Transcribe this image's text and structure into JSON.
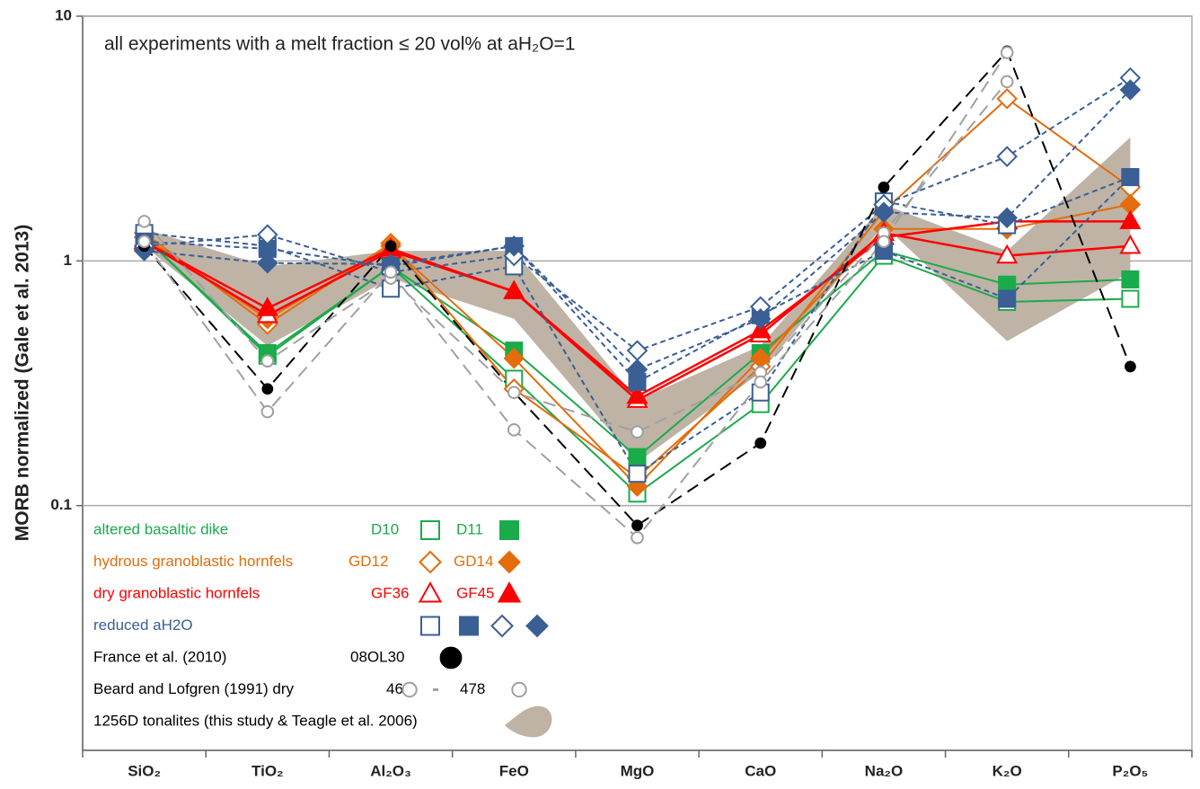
{
  "chart_data": {
    "type": "line",
    "title": "all experiments with a melt fraction ≤ 20 vol% at aH₂O=1",
    "y_label": "MORB normalized (Gale et al. 2013)",
    "categories": [
      "SiO₂",
      "TiO₂",
      "Al₂O₃",
      "FeO",
      "MgO",
      "CaO",
      "Na₂O",
      "K₂O",
      "P₂O₅"
    ],
    "ylim": [
      0.01,
      10
    ],
    "yticks": [
      0.1,
      1,
      10
    ],
    "log_scale": true,
    "grid": true,
    "legend_position": "lower left",
    "groups": [
      {
        "label": "altered basaltic dike",
        "color": "#1aab4b"
      },
      {
        "label": "hydrous granoblastic hornfels",
        "color": "#e46c0a"
      },
      {
        "label": "dry granoblastic hornfels",
        "color": "#ff0000"
      },
      {
        "label": "reduced aH2O",
        "color": "#3a5f94"
      },
      {
        "label": "France et al. (2010)",
        "color": "#000000"
      },
      {
        "label": "Beard and Lofgren (1991) dry",
        "color": "#000000"
      },
      {
        "label": "1256D tonalites (this study & Teagle et al. 2006)",
        "color": "#000000"
      }
    ],
    "series": [
      {
        "name": "D10",
        "group": 0,
        "color": "#1aab4b",
        "marker": "square",
        "filled": false,
        "dashed": false,
        "values": [
          1.25,
          0.41,
          0.95,
          0.33,
          0.112,
          0.26,
          1.05,
          0.68,
          0.7
        ]
      },
      {
        "name": "D11",
        "group": 0,
        "color": "#1aab4b",
        "marker": "square",
        "filled": true,
        "dashed": false,
        "values": [
          1.25,
          0.42,
          0.95,
          0.43,
          0.158,
          0.42,
          1.1,
          0.8,
          0.84
        ]
      },
      {
        "name": "GD12",
        "group": 1,
        "color": "#e46c0a",
        "marker": "diamond",
        "filled": false,
        "dashed": false,
        "values": [
          1.3,
          0.55,
          1.18,
          0.3,
          0.13,
          0.37,
          1.6,
          4.6,
          2.0
        ]
      },
      {
        "name": "GD14",
        "group": 1,
        "color": "#e46c0a",
        "marker": "diamond",
        "filled": true,
        "dashed": false,
        "values": [
          1.25,
          0.58,
          1.15,
          0.4,
          0.12,
          0.4,
          1.35,
          1.35,
          1.7
        ]
      },
      {
        "name": "GF36",
        "group": 2,
        "color": "#ff0000",
        "marker": "triangle",
        "filled": false,
        "dashed": false,
        "values": [
          1.2,
          0.6,
          1.1,
          0.75,
          0.27,
          0.5,
          1.3,
          1.05,
          1.15
        ]
      },
      {
        "name": "GF45",
        "group": 2,
        "color": "#ff0000",
        "marker": "triangle",
        "filled": true,
        "dashed": false,
        "values": [
          1.2,
          0.64,
          1.12,
          0.75,
          0.28,
          0.52,
          1.25,
          1.45,
          1.45
        ]
      },
      {
        "group": 3,
        "color": "#3a5f94",
        "marker": "square",
        "filled": false,
        "dashed": true,
        "values": [
          1.3,
          1.15,
          0.77,
          0.95,
          0.135,
          0.29,
          1.75,
          1.4,
          2.2
        ]
      },
      {
        "group": 3,
        "color": "#3a5f94",
        "marker": "square",
        "filled": true,
        "dashed": true,
        "values": [
          1.2,
          1.12,
          0.95,
          1.15,
          0.32,
          0.6,
          1.1,
          0.7,
          2.2
        ]
      },
      {
        "group": 3,
        "color": "#3a5f94",
        "marker": "diamond",
        "filled": false,
        "dashed": true,
        "values": [
          1.15,
          1.28,
          0.9,
          1.05,
          0.43,
          0.65,
          1.7,
          2.67,
          5.6
        ]
      },
      {
        "group": 3,
        "color": "#3a5f94",
        "marker": "diamond",
        "filled": true,
        "dashed": true,
        "values": [
          1.1,
          0.98,
          0.97,
          1.15,
          0.36,
          0.58,
          1.58,
          1.5,
          5.0
        ]
      },
      {
        "name": "08OL30",
        "group": 4,
        "color": "#000000",
        "marker": "dot",
        "filled": true,
        "dashed": true,
        "values": [
          1.15,
          0.3,
          1.15,
          0.29,
          0.083,
          0.18,
          2.0,
          7.2,
          0.37
        ]
      },
      {
        "name": "466",
        "group": 5,
        "color": "#a0a0a0",
        "marker": "circle",
        "filled": false,
        "dashed": true,
        "values": [
          1.45,
          0.39,
          0.85,
          0.29,
          0.2,
          0.35,
          1.3,
          5.4,
          null
        ]
      },
      {
        "name": "478",
        "group": 5,
        "color": "#a0a0a0",
        "marker": "circle",
        "filled": false,
        "dashed": true,
        "values": [
          1.2,
          0.242,
          0.9,
          0.204,
          0.074,
          0.32,
          1.2,
          7.1,
          null
        ]
      }
    ],
    "field": {
      "group": 6,
      "color": "#bfb3a6",
      "upper": [
        1.35,
        0.95,
        1.1,
        1.1,
        0.27,
        0.45,
        1.7,
        1.1,
        3.2
      ],
      "lower": [
        1.15,
        0.45,
        0.85,
        0.58,
        0.15,
        0.35,
        1.4,
        0.47,
        0.9
      ]
    }
  }
}
